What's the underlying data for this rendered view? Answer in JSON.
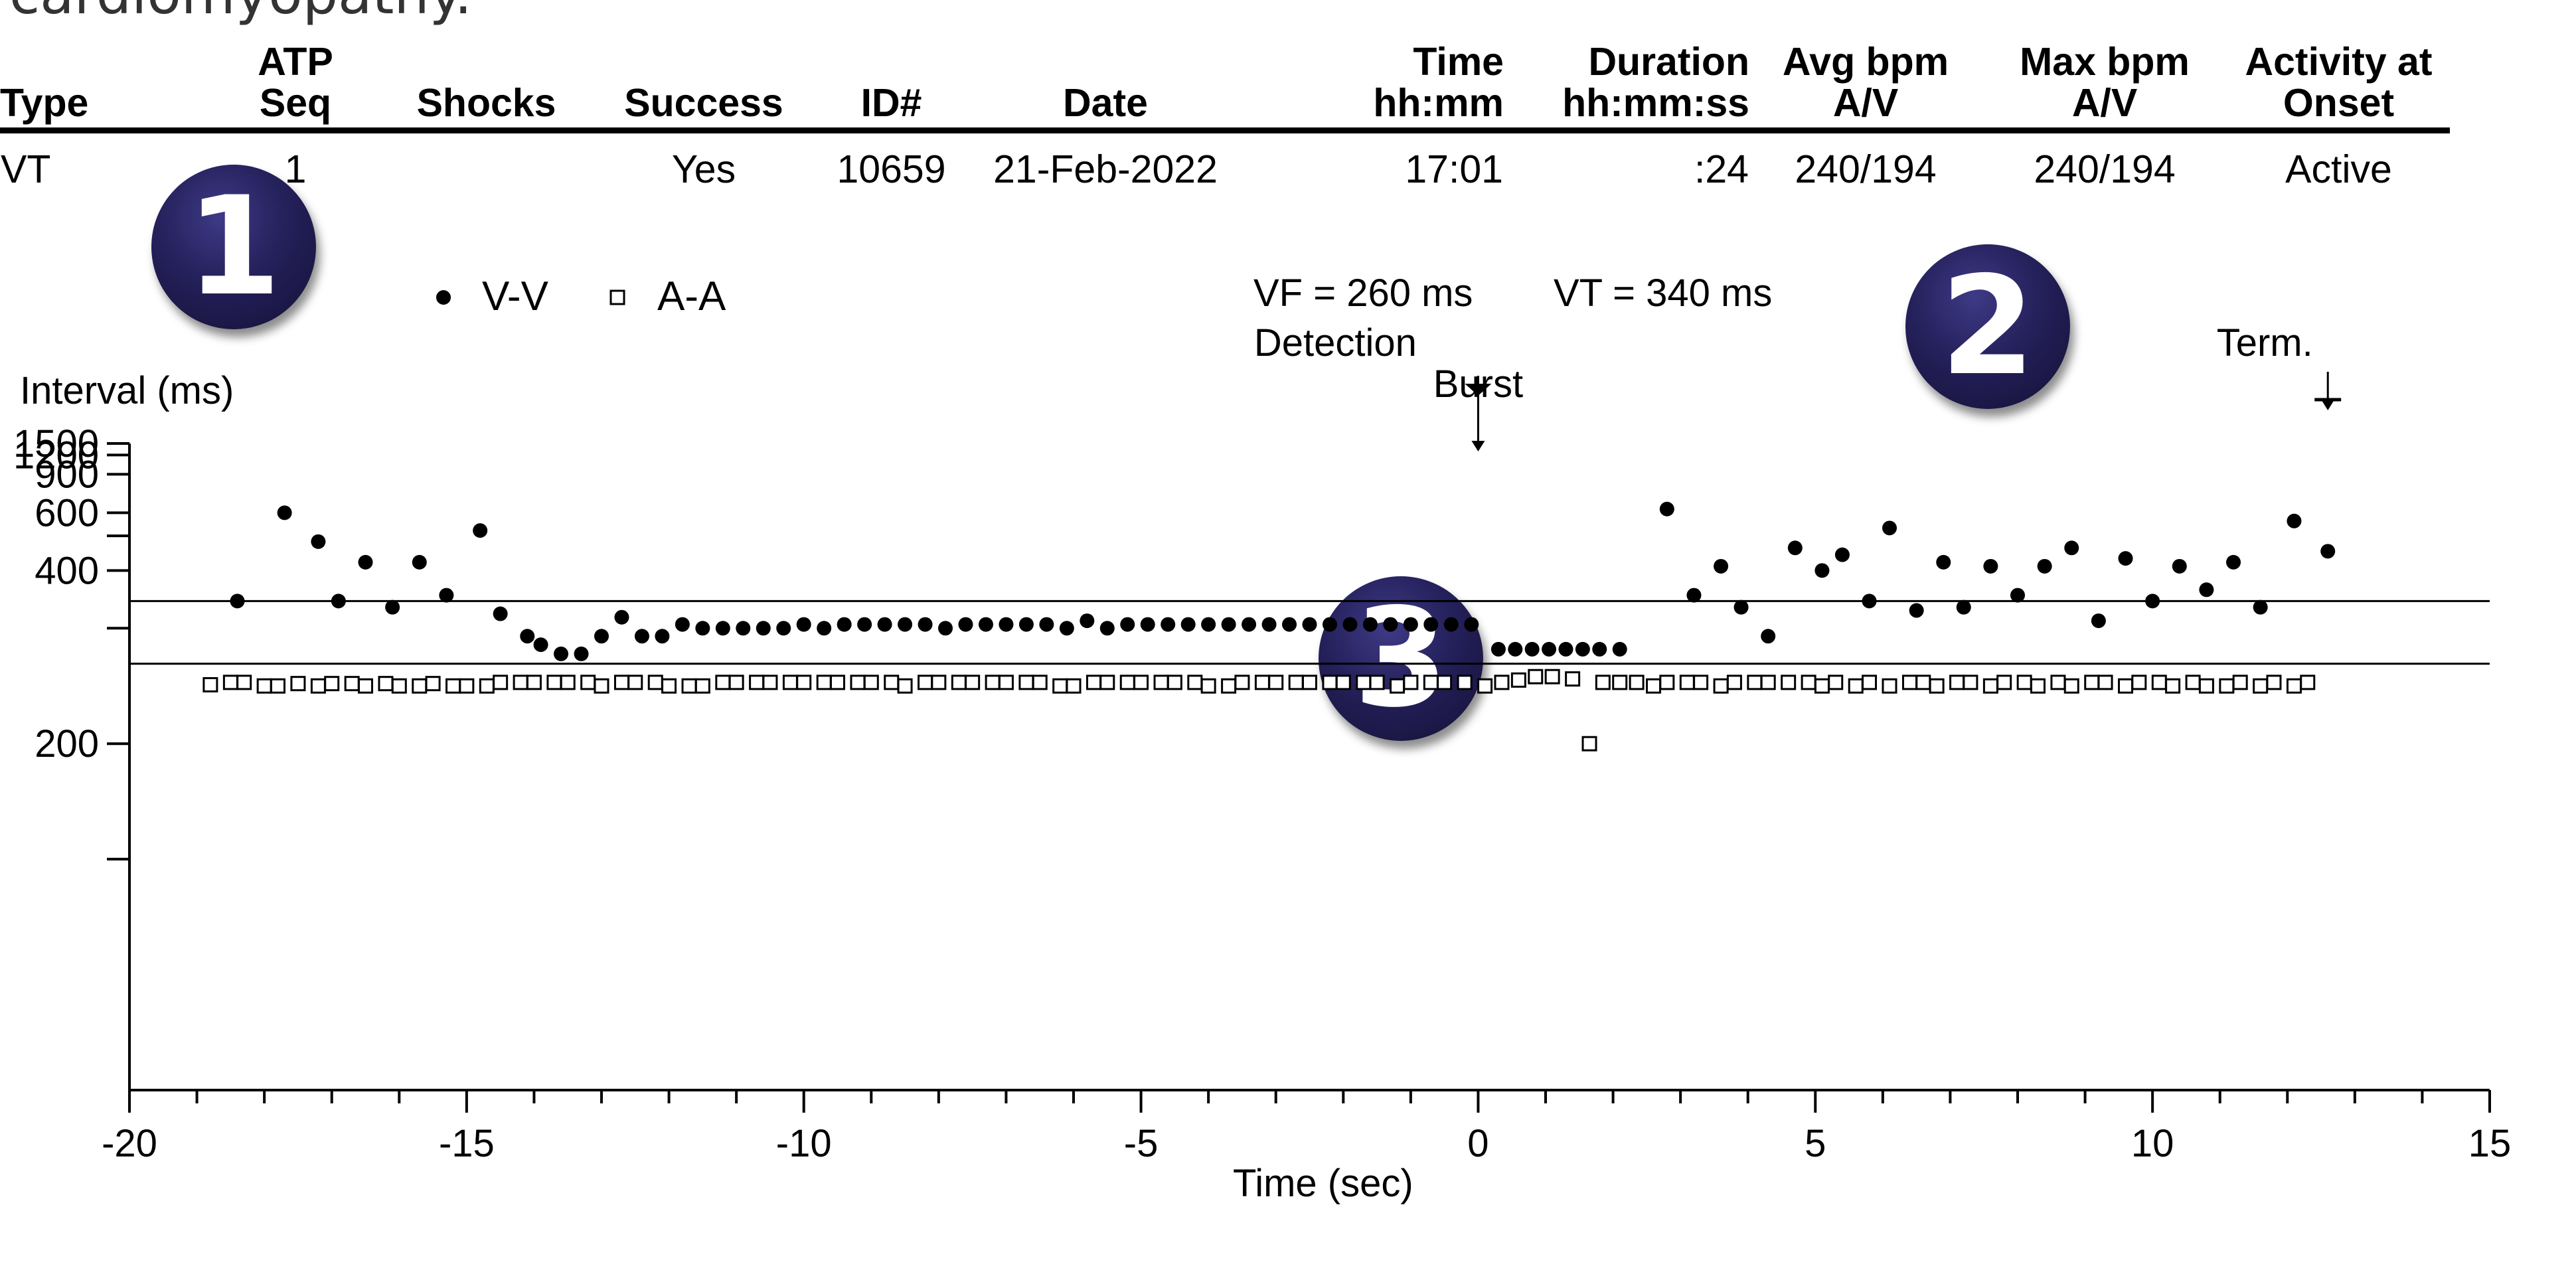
{
  "top_text": "cardiomyopathy.",
  "table": {
    "headers": [
      {
        "line1": "",
        "line2": "Type",
        "align": "l"
      },
      {
        "line1": "ATP",
        "line2": "Seq",
        "align": "c"
      },
      {
        "line1": "",
        "line2": "Shocks",
        "align": "c"
      },
      {
        "line1": "",
        "line2": "Success",
        "align": "c"
      },
      {
        "line1": "",
        "line2": "ID#",
        "align": "c"
      },
      {
        "line1": "",
        "line2": "Date",
        "align": "c"
      },
      {
        "line1": "Time",
        "line2": "hh:mm",
        "align": "r"
      },
      {
        "line1": "Duration",
        "line2": "hh:mm:ss",
        "align": "r"
      },
      {
        "line1": "Avg bpm",
        "line2": "A/V",
        "align": "c"
      },
      {
        "line1": "Max bpm",
        "line2": "A/V",
        "align": "c"
      },
      {
        "line1": "Activity at",
        "line2": "Onset",
        "align": "c"
      }
    ],
    "row": [
      "VT",
      "1",
      "",
      "Yes",
      "10659",
      "21-Feb-2022",
      "17:01",
      ":24",
      "240/194",
      "240/194",
      "Active"
    ]
  },
  "badges": [
    "1",
    "2",
    "3"
  ],
  "chart_data": {
    "type": "scatter",
    "xlabel": "Time (sec)",
    "ylabel": "Interval (ms)",
    "xlim": [
      -20,
      15
    ],
    "x_ticks": [
      -20,
      -15,
      -10,
      -5,
      0,
      5,
      10,
      15
    ],
    "y_scale": "reciprocal",
    "y_display_range": [
      100,
      1500
    ],
    "y_ticks": [
      1500,
      1200,
      900,
      600,
      400,
      200
    ],
    "y_minor_ticks": [
      500,
      300,
      150
    ],
    "legend": [
      {
        "name": "V-V",
        "marker": "filled-circle"
      },
      {
        "name": "A-A",
        "marker": "open-square"
      }
    ],
    "thresholds": [
      {
        "label": "VT = 340 ms",
        "value": 340
      },
      {
        "label": "VF = 260 ms",
        "value": 260
      }
    ],
    "annotations": [
      {
        "text": "Detection",
        "x": 0
      },
      {
        "text": "Burst",
        "x": 0
      },
      {
        "text": "Term.",
        "x": 12.6
      }
    ],
    "series": [
      {
        "name": "V-V",
        "points": [
          [
            -18.4,
            340
          ],
          [
            -17.7,
            600
          ],
          [
            -17.2,
            480
          ],
          [
            -16.9,
            340
          ],
          [
            -16.5,
            420
          ],
          [
            -16.1,
            330
          ],
          [
            -15.7,
            420
          ],
          [
            -15.3,
            350
          ],
          [
            -14.8,
            520
          ],
          [
            -14.5,
            320
          ],
          [
            -14.1,
            290
          ],
          [
            -13.9,
            280
          ],
          [
            -13.6,
            270
          ],
          [
            -13.3,
            270
          ],
          [
            -13.0,
            290
          ],
          [
            -12.7,
            315
          ],
          [
            -12.4,
            290
          ],
          [
            -12.1,
            290
          ],
          [
            -11.8,
            305
          ],
          [
            -11.5,
            300
          ],
          [
            -11.2,
            300
          ],
          [
            -10.9,
            300
          ],
          [
            -10.6,
            300
          ],
          [
            -10.3,
            300
          ],
          [
            -10.0,
            305
          ],
          [
            -9.7,
            300
          ],
          [
            -9.4,
            305
          ],
          [
            -9.1,
            305
          ],
          [
            -8.8,
            305
          ],
          [
            -8.5,
            305
          ],
          [
            -8.2,
            305
          ],
          [
            -7.9,
            300
          ],
          [
            -7.6,
            305
          ],
          [
            -7.3,
            305
          ],
          [
            -7.0,
            305
          ],
          [
            -6.7,
            305
          ],
          [
            -6.4,
            305
          ],
          [
            -6.1,
            300
          ],
          [
            -5.8,
            310
          ],
          [
            -5.5,
            300
          ],
          [
            -5.2,
            305
          ],
          [
            -4.9,
            305
          ],
          [
            -4.6,
            305
          ],
          [
            -4.3,
            305
          ],
          [
            -4.0,
            305
          ],
          [
            -3.7,
            305
          ],
          [
            -3.4,
            305
          ],
          [
            -3.1,
            305
          ],
          [
            -2.8,
            305
          ],
          [
            -2.5,
            305
          ],
          [
            -2.2,
            305
          ],
          [
            -1.9,
            305
          ],
          [
            -1.6,
            305
          ],
          [
            -1.3,
            305
          ],
          [
            -1.0,
            305
          ],
          [
            -0.7,
            305
          ],
          [
            -0.4,
            305
          ],
          [
            -0.1,
            305
          ],
          [
            0.3,
            275
          ],
          [
            0.55,
            275
          ],
          [
            0.8,
            275
          ],
          [
            1.05,
            275
          ],
          [
            1.3,
            275
          ],
          [
            1.55,
            275
          ],
          [
            1.8,
            275
          ],
          [
            2.1,
            275
          ],
          [
            2.8,
            620
          ],
          [
            3.2,
            350
          ],
          [
            3.6,
            410
          ],
          [
            3.9,
            330
          ],
          [
            4.3,
            290
          ],
          [
            4.7,
            460
          ],
          [
            5.1,
            400
          ],
          [
            5.4,
            440
          ],
          [
            5.8,
            340
          ],
          [
            6.1,
            530
          ],
          [
            6.5,
            325
          ],
          [
            6.9,
            420
          ],
          [
            7.2,
            330
          ],
          [
            7.6,
            410
          ],
          [
            8.0,
            350
          ],
          [
            8.4,
            410
          ],
          [
            8.8,
            460
          ],
          [
            9.2,
            310
          ],
          [
            9.6,
            430
          ],
          [
            10.0,
            340
          ],
          [
            10.4,
            410
          ],
          [
            10.8,
            360
          ],
          [
            11.2,
            420
          ],
          [
            11.6,
            330
          ],
          [
            12.1,
            560
          ],
          [
            12.6,
            450
          ]
        ]
      },
      {
        "name": "A-A",
        "points": [
          [
            -18.8,
            241
          ],
          [
            -18.5,
            243
          ],
          [
            -18.3,
            243
          ],
          [
            -18.0,
            240
          ],
          [
            -17.8,
            240
          ],
          [
            -17.5,
            242
          ],
          [
            -17.2,
            240
          ],
          [
            -17.0,
            242
          ],
          [
            -16.7,
            242
          ],
          [
            -16.5,
            240
          ],
          [
            -16.2,
            242
          ],
          [
            -16.0,
            240
          ],
          [
            -15.7,
            240
          ],
          [
            -15.5,
            242
          ],
          [
            -15.2,
            240
          ],
          [
            -15.0,
            240
          ],
          [
            -14.7,
            240
          ],
          [
            -14.5,
            243
          ],
          [
            -14.2,
            243
          ],
          [
            -14.0,
            243
          ],
          [
            -13.7,
            243
          ],
          [
            -13.5,
            243
          ],
          [
            -13.2,
            243
          ],
          [
            -13.0,
            240
          ],
          [
            -12.7,
            243
          ],
          [
            -12.5,
            243
          ],
          [
            -12.2,
            243
          ],
          [
            -12.0,
            240
          ],
          [
            -11.7,
            240
          ],
          [
            -11.5,
            240
          ],
          [
            -11.2,
            243
          ],
          [
            -11.0,
            243
          ],
          [
            -10.7,
            243
          ],
          [
            -10.5,
            243
          ],
          [
            -10.2,
            243
          ],
          [
            -10.0,
            243
          ],
          [
            -9.7,
            243
          ],
          [
            -9.5,
            243
          ],
          [
            -9.2,
            243
          ],
          [
            -9.0,
            243
          ],
          [
            -8.7,
            243
          ],
          [
            -8.5,
            240
          ],
          [
            -8.2,
            243
          ],
          [
            -8.0,
            243
          ],
          [
            -7.7,
            243
          ],
          [
            -7.5,
            243
          ],
          [
            -7.2,
            243
          ],
          [
            -7.0,
            243
          ],
          [
            -6.7,
            243
          ],
          [
            -6.5,
            243
          ],
          [
            -6.2,
            240
          ],
          [
            -6.0,
            240
          ],
          [
            -5.7,
            243
          ],
          [
            -5.5,
            243
          ],
          [
            -5.2,
            243
          ],
          [
            -5.0,
            243
          ],
          [
            -4.7,
            243
          ],
          [
            -4.5,
            243
          ],
          [
            -4.2,
            243
          ],
          [
            -4.0,
            240
          ],
          [
            -3.7,
            240
          ],
          [
            -3.5,
            243
          ],
          [
            -3.2,
            243
          ],
          [
            -3.0,
            243
          ],
          [
            -2.7,
            243
          ],
          [
            -2.5,
            243
          ],
          [
            -2.2,
            243
          ],
          [
            -2.0,
            243
          ],
          [
            -1.7,
            243
          ],
          [
            -1.5,
            243
          ],
          [
            -1.2,
            240
          ],
          [
            -1.0,
            243
          ],
          [
            -0.7,
            243
          ],
          [
            -0.5,
            243
          ],
          [
            -0.2,
            243
          ],
          [
            0.1,
            240
          ],
          [
            0.35,
            243
          ],
          [
            0.6,
            245
          ],
          [
            0.85,
            248
          ],
          [
            1.1,
            248
          ],
          [
            1.4,
            246
          ],
          [
            1.65,
            200
          ],
          [
            1.85,
            243
          ],
          [
            2.1,
            243
          ],
          [
            2.35,
            243
          ],
          [
            2.6,
            240
          ],
          [
            2.8,
            243
          ],
          [
            3.1,
            243
          ],
          [
            3.3,
            243
          ],
          [
            3.6,
            240
          ],
          [
            3.8,
            243
          ],
          [
            4.1,
            243
          ],
          [
            4.3,
            243
          ],
          [
            4.6,
            243
          ],
          [
            4.9,
            243
          ],
          [
            5.1,
            240
          ],
          [
            5.3,
            243
          ],
          [
            5.6,
            240
          ],
          [
            5.8,
            243
          ],
          [
            6.1,
            240
          ],
          [
            6.4,
            243
          ],
          [
            6.6,
            243
          ],
          [
            6.8,
            240
          ],
          [
            7.1,
            243
          ],
          [
            7.3,
            243
          ],
          [
            7.6,
            240
          ],
          [
            7.8,
            243
          ],
          [
            8.1,
            243
          ],
          [
            8.3,
            240
          ],
          [
            8.6,
            243
          ],
          [
            8.8,
            240
          ],
          [
            9.1,
            243
          ],
          [
            9.3,
            243
          ],
          [
            9.6,
            240
          ],
          [
            9.8,
            243
          ],
          [
            10.1,
            243
          ],
          [
            10.3,
            240
          ],
          [
            10.6,
            243
          ],
          [
            10.8,
            240
          ],
          [
            11.1,
            240
          ],
          [
            11.3,
            243
          ],
          [
            11.6,
            240
          ],
          [
            11.8,
            243
          ],
          [
            12.1,
            240
          ],
          [
            12.3,
            243
          ]
        ]
      }
    ]
  }
}
